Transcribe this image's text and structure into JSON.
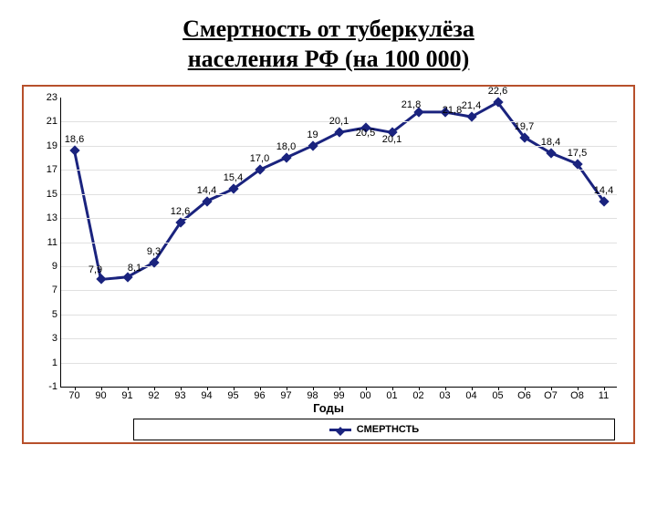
{
  "title_line1": "Смертность от туберкулёза",
  "title_line2": "населения РФ (на 100 000)",
  "chart": {
    "type": "line",
    "x_categories": [
      "70",
      "90",
      "91",
      "92",
      "93",
      "94",
      "95",
      "96",
      "97",
      "98",
      "99",
      "00",
      "01",
      "02",
      "03",
      "04",
      "05",
      "О6",
      "О7",
      "О8",
      "11"
    ],
    "values": [
      18.6,
      7.9,
      8.1,
      9.3,
      12.6,
      14.4,
      15.4,
      17.0,
      18.0,
      19,
      20.1,
      20.5,
      20.1,
      21.8,
      21.8,
      21.4,
      22.6,
      19.7,
      18.4,
      17.5,
      14.4
    ],
    "value_labels": [
      "18,6",
      "7,9",
      "8,1",
      "9,3",
      "12,6",
      "14,4",
      "15,4",
      "17,0",
      "18,0",
      "19",
      "20,1",
      "20,5",
      "20,1",
      "21,8",
      "21,8",
      "21,4",
      "22,6",
      "19,7",
      "18,4",
      "17,5",
      "14,4"
    ],
    "ylim": [
      -1,
      23
    ],
    "ytick_step": 2,
    "xlabel": "Годы",
    "line_color": "#1a237e",
    "line_width": 3,
    "marker_style": "diamond",
    "marker_size": 8,
    "marker_color": "#1a237e",
    "background_color": "#ffffff",
    "grid_color": "#e0e0e0",
    "legend_label": "СМЕРТНСТЬ"
  },
  "colors": {
    "frame_border": "#b7502b",
    "axis": "#000000",
    "text": "#000000"
  }
}
